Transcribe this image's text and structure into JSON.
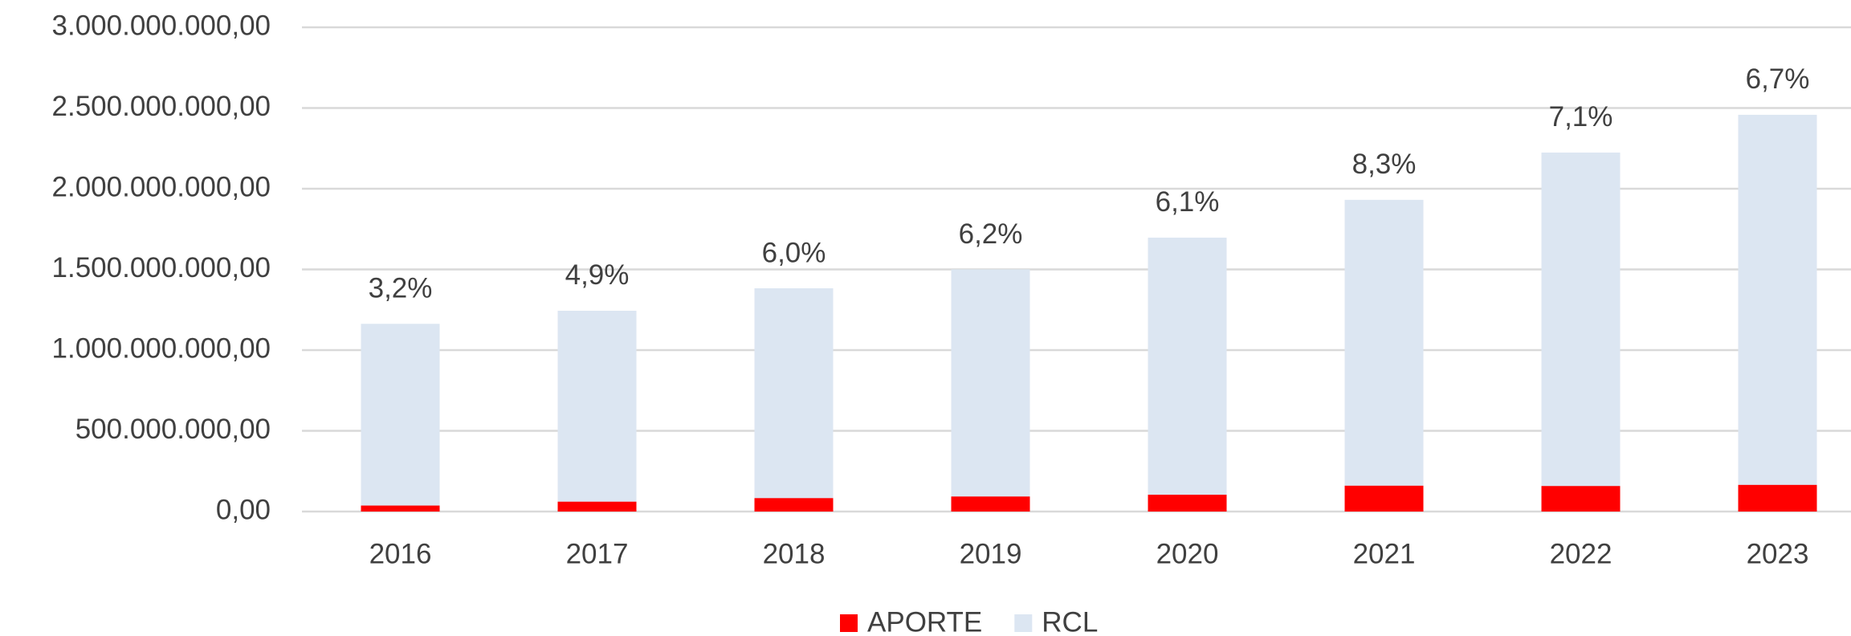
{
  "chart_data": {
    "type": "bar",
    "categories": [
      "2016",
      "2017",
      "2018",
      "2019",
      "2020",
      "2021",
      "2022",
      "2023"
    ],
    "series": [
      {
        "name": "APORTE",
        "color": "#ff0000",
        "values": [
          37000000,
          61000000,
          83000000,
          93000000,
          104000000,
          160000000,
          158000000,
          165000000
        ]
      },
      {
        "name": "RCL",
        "color": "#dce6f2",
        "values": [
          1163000000,
          1244000000,
          1383000000,
          1500000000,
          1697000000,
          1931000000,
          2224000000,
          2458000000
        ]
      }
    ],
    "annotations": [
      "3,2%",
      "4,9%",
      "6,0%",
      "6,2%",
      "6,1%",
      "8,3%",
      "7,1%",
      "6,7%"
    ],
    "ylim": [
      0,
      3000000000
    ],
    "yticks": [
      {
        "value": 0,
        "label": "0,00"
      },
      {
        "value": 500000000,
        "label": "500.000.000,00"
      },
      {
        "value": 1000000000,
        "label": "1.000.000.000,00"
      },
      {
        "value": 1500000000,
        "label": "1.500.000.000,00"
      },
      {
        "value": 2000000000,
        "label": "2.000.000.000,00"
      },
      {
        "value": 2500000000,
        "label": "2.500.000.000,00"
      },
      {
        "value": 3000000000,
        "label": "3.000.000.000,00"
      }
    ],
    "grid": true,
    "legend": "bottom"
  }
}
